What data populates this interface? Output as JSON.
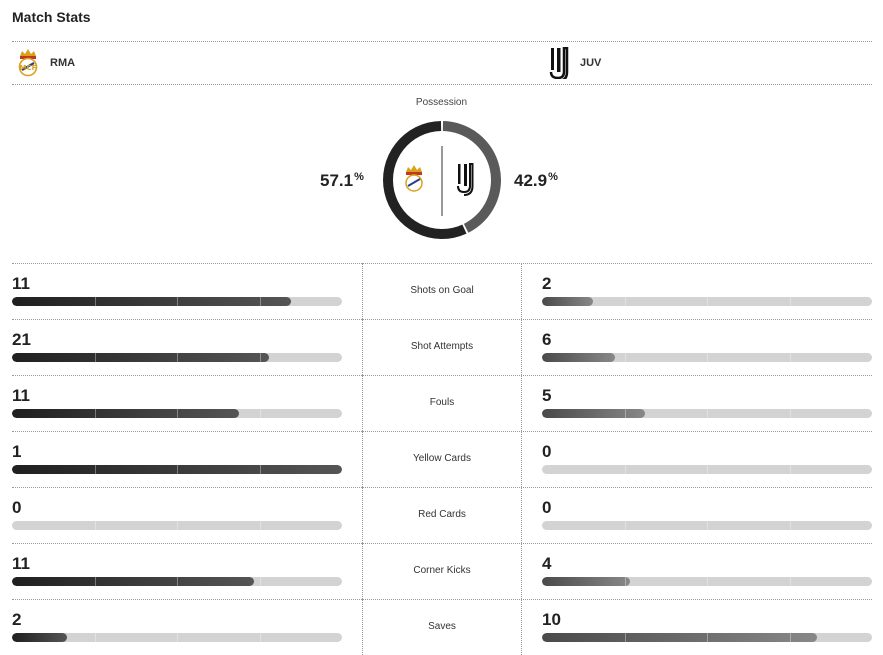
{
  "header": {
    "title": "Match Stats"
  },
  "teams": {
    "home": {
      "abbr": "RMA",
      "logo_icon": "real-madrid-crest-icon"
    },
    "away": {
      "abbr": "JUV",
      "logo_icon": "juventus-logo-icon"
    }
  },
  "possession": {
    "label": "Possession",
    "home_pct": "57.1",
    "away_pct": "42.9",
    "home_value": 57.1,
    "away_value": 42.9,
    "pct_symbol": "%"
  },
  "colors": {
    "home": "#222222",
    "away": "#5a5a5a",
    "track": "#d3d3d3"
  },
  "stats": [
    {
      "label": "Shots on Goal",
      "home": 11,
      "away": 2
    },
    {
      "label": "Shot Attempts",
      "home": 21,
      "away": 6
    },
    {
      "label": "Fouls",
      "home": 11,
      "away": 5
    },
    {
      "label": "Yellow Cards",
      "home": 1,
      "away": 0
    },
    {
      "label": "Red Cards",
      "home": 0,
      "away": 0
    },
    {
      "label": "Corner Kicks",
      "home": 11,
      "away": 4
    },
    {
      "label": "Saves",
      "home": 2,
      "away": 10
    }
  ]
}
